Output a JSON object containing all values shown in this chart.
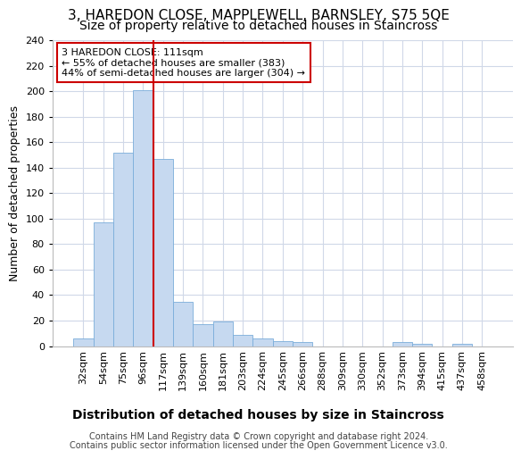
{
  "title": "3, HAREDON CLOSE, MAPPLEWELL, BARNSLEY, S75 5QE",
  "subtitle": "Size of property relative to detached houses in Staincross",
  "xlabel_bottom": "Distribution of detached houses by size in Staincross",
  "ylabel": "Number of detached properties",
  "bar_labels": [
    "32sqm",
    "54sqm",
    "75sqm",
    "96sqm",
    "117sqm",
    "139sqm",
    "160sqm",
    "181sqm",
    "203sqm",
    "224sqm",
    "245sqm",
    "266sqm",
    "288sqm",
    "309sqm",
    "330sqm",
    "352sqm",
    "373sqm",
    "394sqm",
    "415sqm",
    "437sqm",
    "458sqm"
  ],
  "bar_values": [
    6,
    97,
    152,
    201,
    147,
    35,
    17,
    19,
    9,
    6,
    4,
    3,
    0,
    0,
    0,
    0,
    3,
    2,
    0,
    2,
    0
  ],
  "bar_color": "#c6d9f0",
  "bar_edge_color": "#7aadda",
  "vline_color": "#cc0000",
  "vline_x": 3.5,
  "annotation_title": "3 HAREDON CLOSE: 111sqm",
  "annotation_line1": "← 55% of detached houses are smaller (383)",
  "annotation_line2": "44% of semi-detached houses are larger (304) →",
  "annotation_box_color": "#ffffff",
  "annotation_box_edge": "#cc0000",
  "ylim": [
    0,
    240
  ],
  "yticks": [
    0,
    20,
    40,
    60,
    80,
    100,
    120,
    140,
    160,
    180,
    200,
    220,
    240
  ],
  "footer_line1": "Contains HM Land Registry data © Crown copyright and database right 2024.",
  "footer_line2": "Contains public sector information licensed under the Open Government Licence v3.0.",
  "bg_color": "#ffffff",
  "plot_bg_color": "#ffffff",
  "grid_color": "#d0d8e8",
  "title_fontsize": 11,
  "subtitle_fontsize": 10,
  "ylabel_fontsize": 9,
  "tick_fontsize": 8,
  "footer_fontsize": 7,
  "xlabel_bottom_fontsize": 10
}
